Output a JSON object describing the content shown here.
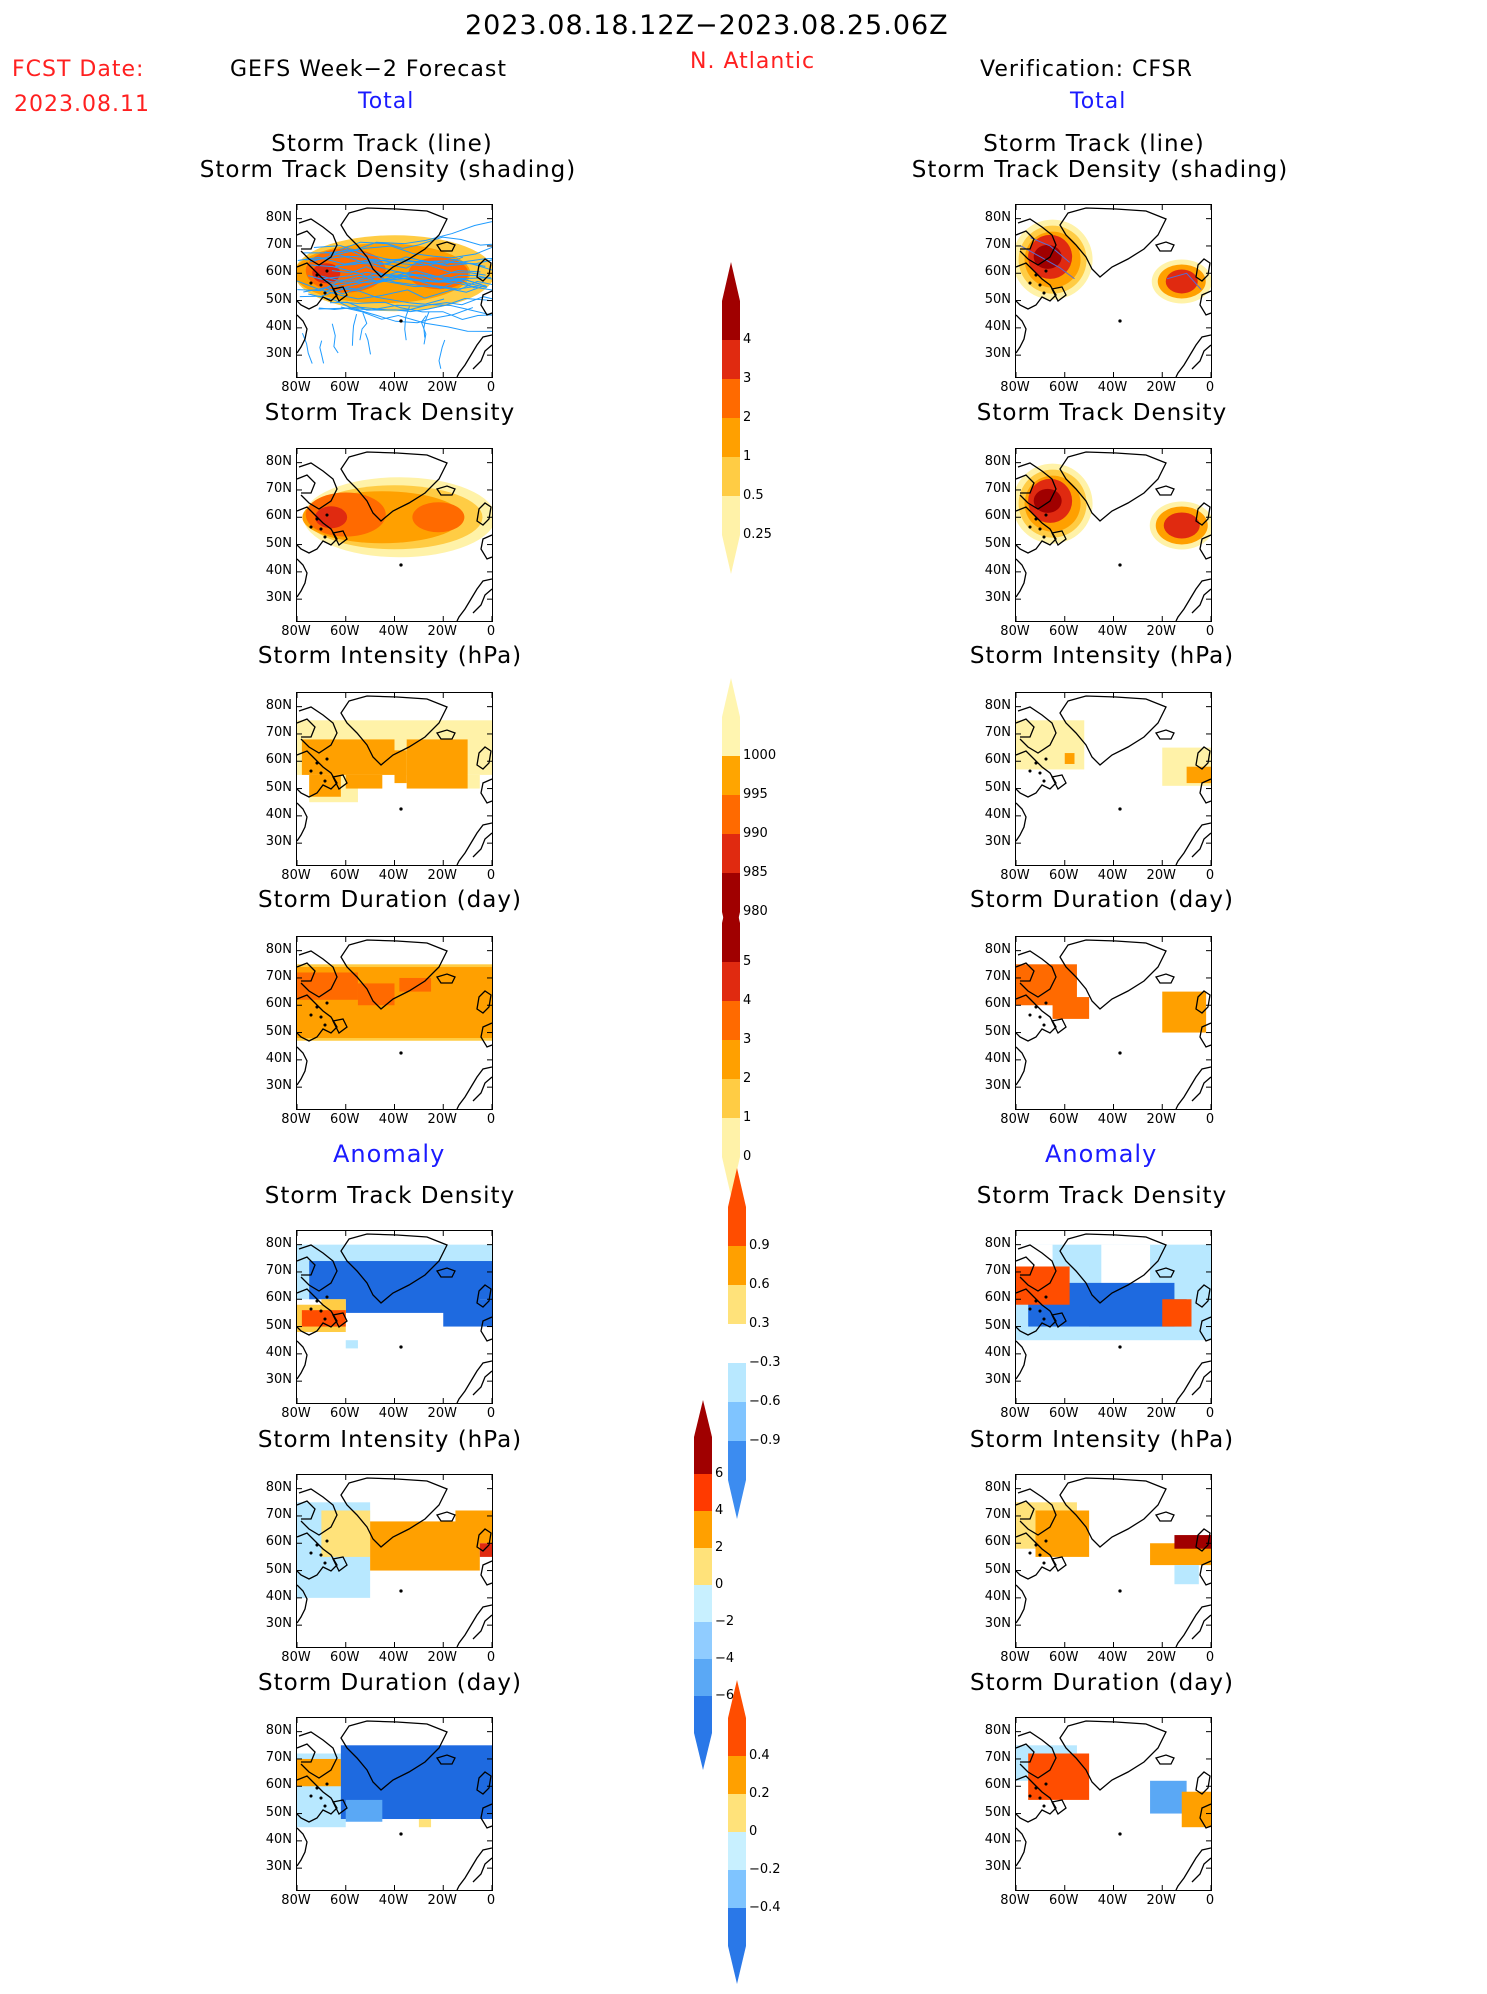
{
  "header": {
    "date_range": "2023.08.18.12Z−2023.08.25.06Z",
    "fcst_label": "FCST Date:",
    "fcst_date": "2023.08.11",
    "left_title": "GEFS Week−2 Forecast",
    "region": "N. Atlantic",
    "right_title": "Verification: CFSR"
  },
  "sections": {
    "total": "Total",
    "anomaly": "Anomaly"
  },
  "panel_titles": {
    "track_line": "Storm Track (line)",
    "track_shading": "Storm Track Density (shading)",
    "density": "Storm Track Density",
    "intensity": "Storm Intensity (hPa)",
    "duration": "Storm Duration (day)"
  },
  "axes": {
    "lat_labels": [
      "80N",
      "70N",
      "60N",
      "50N",
      "40N",
      "30N"
    ],
    "lon_labels": [
      "80W",
      "60W",
      "40W",
      "20W",
      "0"
    ]
  },
  "colorbars": {
    "density_total": {
      "labels": [
        "4",
        "3",
        "2",
        "1",
        "0.5",
        "0.25"
      ],
      "colors": [
        "#a00000",
        "#e02a10",
        "#ff6a00",
        "#ffa000",
        "#ffcc44",
        "#fff2a8"
      ]
    },
    "intensity_total": {
      "labels": [
        "1000",
        "995",
        "990",
        "985",
        "980"
      ],
      "colors": [
        "#fff5b0",
        "#ffa500",
        "#ff6a00",
        "#e02a10",
        "#a00000"
      ]
    },
    "duration_total": {
      "labels": [
        "5",
        "4",
        "3",
        "2",
        "1",
        "0"
      ],
      "colors": [
        "#a00000",
        "#e02a10",
        "#ff6a00",
        "#ffa000",
        "#ffcc44",
        "#fff2a8"
      ]
    },
    "density_anom": {
      "labels": [
        "0.9",
        "0.6",
        "0.3",
        "−0.3",
        "−0.6",
        "−0.9"
      ],
      "colors": [
        "#ff4d00",
        "#ffa000",
        "#ffe27a",
        "#ffffff",
        "#b8e8ff",
        "#7fc4ff",
        "#3c8cf0"
      ]
    },
    "intensity_anom": {
      "labels": [
        "6",
        "4",
        "2",
        "0",
        "−2",
        "−4",
        "−6"
      ],
      "colors": [
        "#a00000",
        "#ff3a00",
        "#ffa000",
        "#ffe27a",
        "#c8f0ff",
        "#90ccff",
        "#5aa8f5",
        "#2a78e8"
      ]
    },
    "duration_anom": {
      "labels": [
        "0.4",
        "0.2",
        "0",
        "−0.2",
        "−0.4"
      ],
      "colors": [
        "#ff4d00",
        "#ffa000",
        "#ffe27a",
        "#c8f0ff",
        "#7fc4ff",
        "#2a78e8"
      ]
    }
  },
  "colors": {
    "dark_red": "#a00000",
    "red": "#e02a10",
    "orange_red": "#ff6a00",
    "orange": "#ffa000",
    "light_orange": "#ffcc44",
    "pale_yellow": "#fff2a8",
    "light_blue": "#b8e8ff",
    "mid_blue": "#5aa8f5",
    "deep_blue": "#1e6ae0",
    "track_blue": "#1e9bff"
  }
}
